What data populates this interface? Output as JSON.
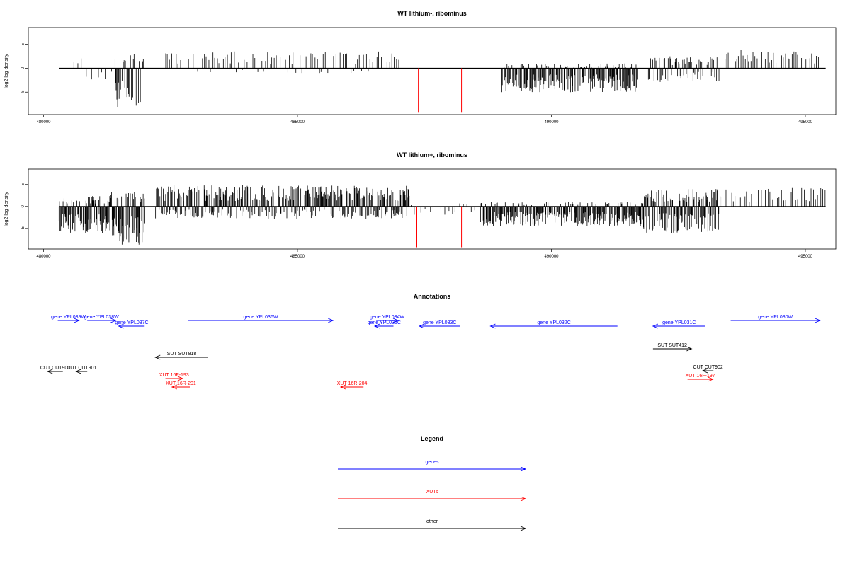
{
  "colors": {
    "genes": "#0000ff",
    "xuts": "#ff0000",
    "other": "#000000"
  },
  "chart_data": [
    {
      "type": "bar",
      "title": "WT lithium-, ribominus",
      "ylabel": "log2 log density",
      "xlim": [
        479700,
        495600
      ],
      "ylim": [
        -9.7,
        8.5
      ],
      "xticks": [
        480000,
        485000,
        490000,
        495000
      ],
      "yticks": [
        -5,
        0,
        5
      ],
      "highlight_x": [
        487380,
        488230
      ],
      "highlight_y": -9.3,
      "segments": [
        {
          "x0": 480550,
          "x1": 481400,
          "ymax": 2.2,
          "ymin": -2.5,
          "step": 95
        },
        {
          "x0": 481400,
          "x1": 482000,
          "ymax": 3.0,
          "ymin": -8.5,
          "step": 14
        },
        {
          "x0": 482350,
          "x1": 487000,
          "ymax": 3.5,
          "ymin": -1.2,
          "step": 42
        },
        {
          "x0": 489000,
          "x1": 491700,
          "ymax": 1.0,
          "ymin": -5.0,
          "step": 11
        },
        {
          "x0": 491900,
          "x1": 493300,
          "ymax": 2.5,
          "ymin": -3.0,
          "step": 17
        },
        {
          "x0": 493400,
          "x1": 495300,
          "ymax": 3.8,
          "ymin": 0,
          "step": 40
        }
      ]
    },
    {
      "type": "bar",
      "title": "WT lithium+, ribominus",
      "ylabel": "log2 log density",
      "xlim": [
        479700,
        495600
      ],
      "ylim": [
        -9.7,
        8.5
      ],
      "xticks": [
        480000,
        485000,
        490000,
        495000
      ],
      "yticks": [
        -5,
        0,
        5
      ],
      "highlight_x": [
        487350,
        488230
      ],
      "highlight_y": -9.3,
      "segments": [
        {
          "x0": 480300,
          "x1": 481300,
          "ymax": 2.5,
          "ymin": -6.0,
          "step": 9
        },
        {
          "x0": 481300,
          "x1": 482000,
          "ymax": 3.5,
          "ymin": -8.7,
          "step": 9
        },
        {
          "x0": 482200,
          "x1": 487200,
          "ymax": 4.8,
          "ymin": -2.8,
          "step": 11
        },
        {
          "x0": 487200,
          "x1": 488600,
          "ymax": 1.0,
          "ymin": -2.0,
          "step": 75
        },
        {
          "x0": 488600,
          "x1": 491800,
          "ymax": 1.0,
          "ymin": -4.5,
          "step": 10
        },
        {
          "x0": 491800,
          "x1": 493300,
          "ymax": 4.0,
          "ymin": -6.0,
          "step": 9
        },
        {
          "x0": 493300,
          "x1": 495400,
          "ymax": 4.2,
          "ymin": 0,
          "step": 45
        }
      ]
    }
  ],
  "annotations_title": "Annotations",
  "annotation_xlim": [
    479700,
    495600
  ],
  "annotations": [
    {
      "label": "gene YPL039W",
      "kind": "gene",
      "start": 480280,
      "end": 480700,
      "strand": "+",
      "row": 0
    },
    {
      "label": "gene YPL038W",
      "kind": "gene",
      "start": 480860,
      "end": 481420,
      "strand": "+",
      "row": 0
    },
    {
      "label": "gene YPL037C",
      "kind": "gene",
      "start": 481480,
      "end": 481990,
      "strand": "-",
      "row": 1
    },
    {
      "label": "gene YPL036W",
      "kind": "gene",
      "start": 482850,
      "end": 485700,
      "strand": "+",
      "row": 0
    },
    {
      "label": "gene YPL034W",
      "kind": "gene",
      "start": 486550,
      "end": 486980,
      "strand": "+",
      "row": 0
    },
    {
      "label": "gene YPL035C",
      "kind": "gene",
      "start": 486520,
      "end": 486890,
      "strand": "-",
      "row": 1
    },
    {
      "label": "gene YPL033C",
      "kind": "gene",
      "start": 487400,
      "end": 488200,
      "strand": "-",
      "row": 1
    },
    {
      "label": "gene YPL032C",
      "kind": "gene",
      "start": 488800,
      "end": 491300,
      "strand": "-",
      "row": 1
    },
    {
      "label": "gene YPL031C",
      "kind": "gene",
      "start": 492000,
      "end": 493030,
      "strand": "-",
      "row": 1
    },
    {
      "label": "gene YPL030W",
      "kind": "gene",
      "start": 493530,
      "end": 495290,
      "strand": "+",
      "row": 0
    },
    {
      "label": "SUT SUT818",
      "kind": "other",
      "start": 482200,
      "end": 483240,
      "strand": "-",
      "row": 2
    },
    {
      "label": "SUT SUT412",
      "kind": "other",
      "start": 492000,
      "end": 492760,
      "strand": "+",
      "row": 3
    },
    {
      "label": "CUT CUT900",
      "kind": "other",
      "start": 480080,
      "end": 480380,
      "strand": "-",
      "row": 4
    },
    {
      "label": "CUT CUT901",
      "kind": "other",
      "start": 480640,
      "end": 480860,
      "strand": "-",
      "row": 4
    },
    {
      "label": "CUT CUT902",
      "kind": "other",
      "start": 492980,
      "end": 493190,
      "strand": "-",
      "row": 5
    },
    {
      "label": "XUT 16F-193",
      "kind": "xut",
      "start": 482400,
      "end": 482740,
      "strand": "+",
      "row": 6
    },
    {
      "label": "XUT 16R-201",
      "kind": "xut",
      "start": 482530,
      "end": 482880,
      "strand": "-",
      "row": 7
    },
    {
      "label": "XUT 16R-204",
      "kind": "xut",
      "start": 485850,
      "end": 486300,
      "strand": "-",
      "row": 7
    },
    {
      "label": "XUT 16F-197",
      "kind": "xut",
      "start": 492680,
      "end": 493180,
      "strand": "+",
      "row": 8
    }
  ],
  "legend_title": "Legend",
  "legend": [
    {
      "label": "genes",
      "kind": "gene"
    },
    {
      "label": "XUTs",
      "kind": "xut"
    },
    {
      "label": "other",
      "kind": "other"
    }
  ]
}
